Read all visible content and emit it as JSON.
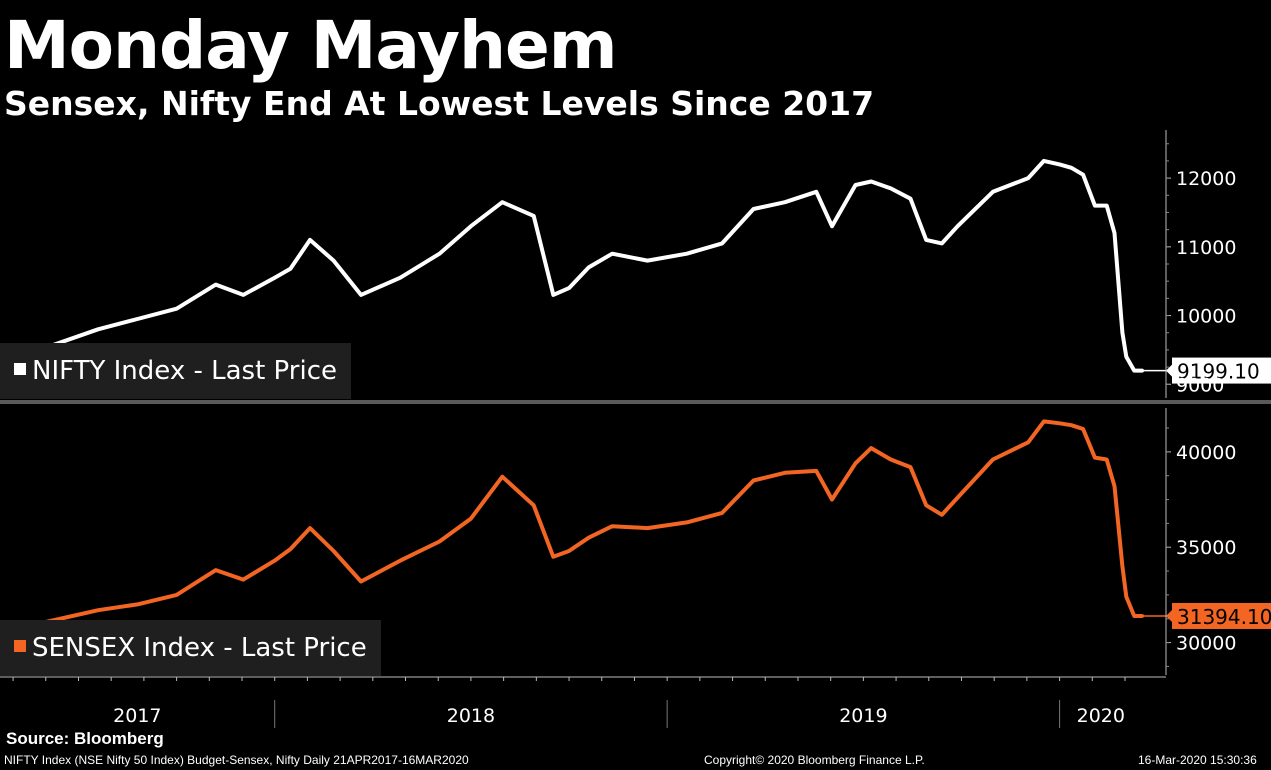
{
  "header": {
    "title": "Monday Mayhem",
    "subtitle": "Sensex, Nifty End At Lowest Levels Since 2017"
  },
  "legends": {
    "nifty": "NIFTY Index - Last Price",
    "sensex": "SENSEX Index - Last Price"
  },
  "colors": {
    "nifty": "#ffffff",
    "sensex": "#f26522",
    "background": "#000000",
    "divider": "#555555"
  },
  "chart_data": [
    {
      "type": "line",
      "name": "NIFTY Index - Last Price",
      "ylim": [
        8800,
        12700
      ],
      "yticks": [
        9000,
        10000,
        11000,
        12000
      ],
      "y_tick_labels": [
        "9000",
        "10000",
        "11000",
        "12000"
      ],
      "last_value": 9199.1,
      "last_label": "9199.10",
      "x": [
        2017.3,
        2017.4,
        2017.55,
        2017.65,
        2017.75,
        2017.85,
        2017.92,
        2018.0,
        2018.04,
        2018.09,
        2018.15,
        2018.22,
        2018.32,
        2018.42,
        2018.5,
        2018.58,
        2018.66,
        2018.71,
        2018.75,
        2018.8,
        2018.86,
        2018.95,
        2019.05,
        2019.14,
        2019.22,
        2019.3,
        2019.38,
        2019.42,
        2019.48,
        2019.52,
        2019.57,
        2019.62,
        2019.66,
        2019.7,
        2019.74,
        2019.83,
        2019.92,
        2019.96,
        2020.0,
        2020.03,
        2020.06,
        2020.09,
        2020.12,
        2020.14,
        2020.16,
        2020.17,
        2020.19,
        2020.21
      ],
      "values": [
        9120,
        9500,
        9800,
        9950,
        10100,
        10450,
        10300,
        10550,
        10680,
        11100,
        10800,
        10300,
        10550,
        10900,
        11300,
        11650,
        11450,
        10300,
        10400,
        10700,
        10900,
        10800,
        10900,
        11050,
        11550,
        11650,
        11800,
        11300,
        11900,
        11950,
        11850,
        11700,
        11100,
        11050,
        11300,
        11800,
        12000,
        12250,
        12200,
        12150,
        12050,
        11600,
        11600,
        11200,
        9750,
        9400,
        9199.1,
        9199.1
      ]
    },
    {
      "type": "line",
      "name": "SENSEX Index - Last Price",
      "ylim": [
        28300,
        42300
      ],
      "yticks": [
        30000,
        35000,
        40000
      ],
      "y_tick_labels": [
        "30000",
        "35000",
        "40000"
      ],
      "last_value": 31394.1,
      "last_label": "31394.10",
      "x": [
        2017.3,
        2017.4,
        2017.55,
        2017.65,
        2017.75,
        2017.85,
        2017.92,
        2018.0,
        2018.04,
        2018.09,
        2018.15,
        2018.22,
        2018.32,
        2018.42,
        2018.5,
        2018.58,
        2018.66,
        2018.71,
        2018.75,
        2018.8,
        2018.86,
        2018.95,
        2019.05,
        2019.14,
        2019.22,
        2019.3,
        2019.38,
        2019.42,
        2019.48,
        2019.52,
        2019.57,
        2019.62,
        2019.66,
        2019.7,
        2019.74,
        2019.83,
        2019.92,
        2019.96,
        2020.0,
        2020.03,
        2020.06,
        2020.09,
        2020.12,
        2020.14,
        2020.16,
        2020.17,
        2020.19,
        2020.21
      ],
      "values": [
        30000,
        31000,
        31700,
        32000,
        32500,
        33800,
        33300,
        34300,
        34900,
        36000,
        34800,
        33200,
        34300,
        35300,
        36500,
        38700,
        37200,
        34500,
        34800,
        35500,
        36100,
        36000,
        36300,
        36800,
        38500,
        38900,
        39000,
        37500,
        39400,
        40200,
        39600,
        39200,
        37200,
        36700,
        37600,
        39600,
        40500,
        41600,
        41500,
        41400,
        41200,
        39700,
        39600,
        38200,
        34000,
        32400,
        31394.1,
        31394.1
      ]
    }
  ],
  "x_axis": {
    "range": [
      2017.3,
      2020.21
    ],
    "labels": [
      "2017",
      "2018",
      "2019",
      "2020"
    ]
  },
  "footer": {
    "source": "Source: Bloomberg",
    "description": "NIFTY Index (NSE Nifty 50 Index) Budget-Sensex, Nifty  Daily 21APR2017-16MAR2020",
    "copyright": "Copyright© 2020 Bloomberg Finance L.P.",
    "timestamp": "16-Mar-2020 15:30:36"
  }
}
